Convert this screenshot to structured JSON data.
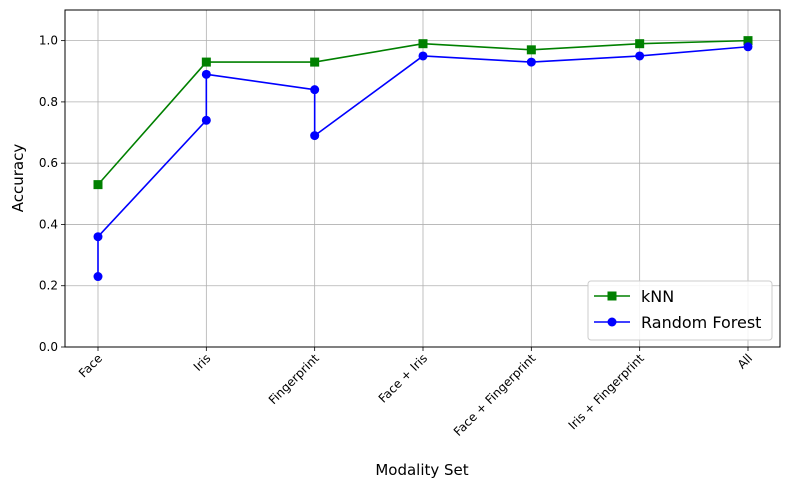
{
  "chart_data": {
    "type": "line",
    "title": "",
    "xlabel": "Modality Set",
    "ylabel": "Accuracy",
    "ylim": [
      0.0,
      1.1
    ],
    "yticks": [
      "0.0",
      "0.2",
      "0.4",
      "0.6",
      "0.8",
      "1.0"
    ],
    "categories": [
      "Face",
      "Iris",
      "Fingerprint",
      "Face + Iris",
      "Face + Fingerprint",
      "Iris + Fingerprint",
      "All"
    ],
    "grid": true,
    "legend_position": "lower-right",
    "series": [
      {
        "name": "kNN",
        "color": "#008000",
        "marker": "square",
        "points": [
          {
            "x": "Face",
            "y": 0.53
          },
          {
            "x": "Iris",
            "y": 0.93
          },
          {
            "x": "Fingerprint",
            "y": 0.93
          },
          {
            "x": "Face + Iris",
            "y": 0.99
          },
          {
            "x": "Face + Fingerprint",
            "y": 0.97
          },
          {
            "x": "Iris + Fingerprint",
            "y": 0.99
          },
          {
            "x": "All",
            "y": 1.0
          }
        ]
      },
      {
        "name": "Random Forest",
        "color": "#0000ff",
        "marker": "circle",
        "points": [
          {
            "x": "Face",
            "y": 0.23
          },
          {
            "x": "Face",
            "y": 0.36
          },
          {
            "x": "Iris",
            "y": 0.74
          },
          {
            "x": "Iris",
            "y": 0.89
          },
          {
            "x": "Fingerprint",
            "y": 0.84
          },
          {
            "x": "Fingerprint",
            "y": 0.69
          },
          {
            "x": "Face + Iris",
            "y": 0.95
          },
          {
            "x": "Face + Fingerprint",
            "y": 0.93
          },
          {
            "x": "Iris + Fingerprint",
            "y": 0.95
          },
          {
            "x": "All",
            "y": 0.98
          }
        ]
      }
    ]
  }
}
